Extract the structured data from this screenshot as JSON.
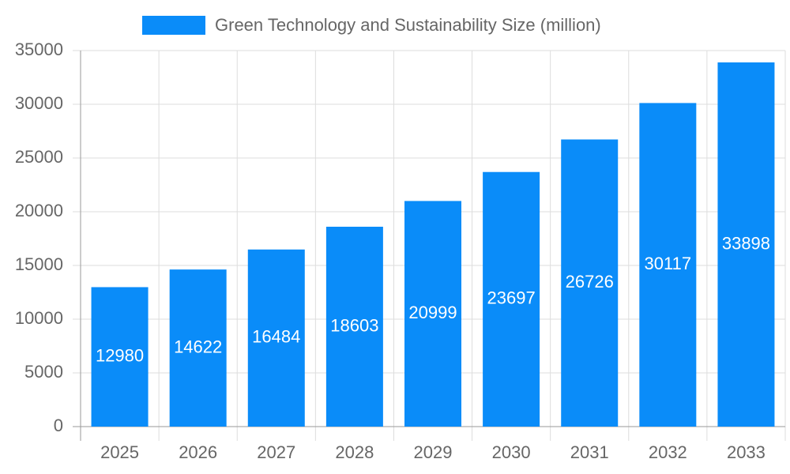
{
  "chart_data": {
    "type": "bar",
    "categories": [
      "2025",
      "2026",
      "2027",
      "2028",
      "2029",
      "2030",
      "2031",
      "2032",
      "2033"
    ],
    "series": [
      {
        "name": "Green Technology and Sustainability Size (million)",
        "color": "#0a8cf9",
        "values": [
          12980,
          14622,
          16484,
          18603,
          20999,
          23697,
          26726,
          30117,
          33898
        ]
      }
    ],
    "ylim": [
      0,
      35000
    ],
    "yticks": [
      0,
      5000,
      10000,
      15000,
      20000,
      25000,
      30000,
      35000
    ],
    "grid": true,
    "legend": "top",
    "data_labels": true
  }
}
